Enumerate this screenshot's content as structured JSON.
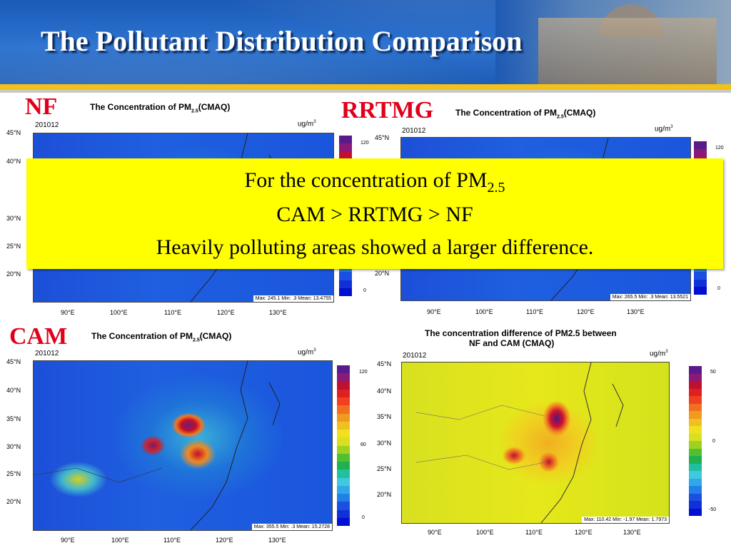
{
  "slide": {
    "title": "The Pollutant Distribution Comparison"
  },
  "panels": {
    "nf": {
      "tag": "NF",
      "title_main": "The Concentration of PM",
      "title_sub": "2.5",
      "title_tail": "(CMAQ)",
      "date": "201012",
      "unit": "ug/m",
      "unit_sup": "3",
      "stats": "Max: 245.1   Min: .3   Mean: 13.4755",
      "cbar_labels": [
        "120",
        "0"
      ]
    },
    "rrtmg": {
      "tag": "RRTMG",
      "title_main": "The Concentration of PM",
      "title_sub": "2.5",
      "title_tail": "(CMAQ)",
      "date": "201012",
      "unit": "ug/m",
      "unit_sup": "3",
      "stats": "Max: 265.5   Min: .3   Mean: 13.5521",
      "cbar_labels": [
        "120",
        "0"
      ]
    },
    "cam": {
      "tag": "CAM",
      "title_main": "The Concentration of PM",
      "title_sub": "2.5",
      "title_tail": "(CMAQ)",
      "date": "201012",
      "unit": "ug/m",
      "unit_sup": "3",
      "stats": "Max: 355.5   Min: .3   Mean: 15.2728",
      "cbar_labels": [
        "120",
        "60",
        "0"
      ]
    },
    "diff": {
      "title_line1": "The concentration difference of PM2.5  between",
      "title_line2": "NF and CAM (CMAQ)",
      "date": "201012",
      "unit": "ug/m",
      "unit_sup": "3",
      "stats": "Max: 110.42   Min: -1.97   Mean: 1.7973",
      "cbar_labels": [
        "50",
        "0",
        "-50"
      ]
    }
  },
  "axes": {
    "lat_labels": [
      "45°N",
      "40°N",
      "35°N",
      "30°N",
      "25°N",
      "20°N"
    ],
    "lon_labels": [
      "90°E",
      "100°E",
      "110°E",
      "120°E",
      "130°E"
    ]
  },
  "colors": {
    "tag_red": "#e0001b",
    "note_bg": "#ffff00",
    "conc_scale": [
      "#5a1a8a",
      "#8a1a7a",
      "#c01030",
      "#e02020",
      "#f04020",
      "#f07020",
      "#f09a20",
      "#f0c020",
      "#f0e020",
      "#d8e020",
      "#a0d020",
      "#50c030",
      "#20b050",
      "#20c0a0",
      "#40c8e0",
      "#30a8e8",
      "#2080e8",
      "#1a50e0",
      "#1030d8",
      "#0010d0"
    ],
    "diff_scale": [
      "#5a1a8a",
      "#8a1a7a",
      "#c01030",
      "#e02020",
      "#f04020",
      "#f07020",
      "#f09a20",
      "#f0c020",
      "#f0e020",
      "#d8e020",
      "#a0d020",
      "#50c030",
      "#20b050",
      "#20c0a0",
      "#40c8e0",
      "#30a8e8",
      "#2080e8",
      "#1a50e0",
      "#1030d8",
      "#0010d0"
    ]
  },
  "note": {
    "line1_main": "For the concentration of PM",
    "line1_sub": "2.5",
    "line2": "CAM > RRTMG > NF",
    "line3": "Heavily polluting areas showed a larger difference."
  }
}
